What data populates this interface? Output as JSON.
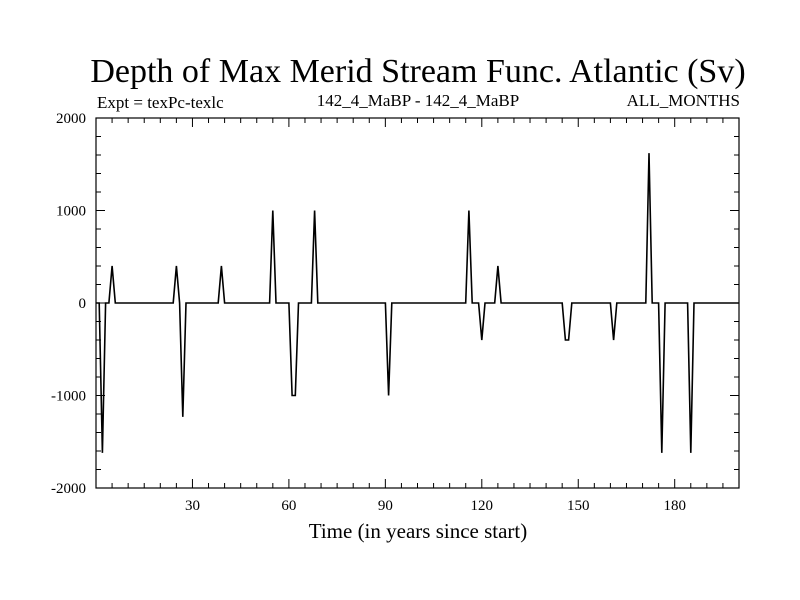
{
  "chart_data": {
    "type": "line",
    "title": "Depth of Max Merid Stream Func. Atlantic (Sv)",
    "subtitle_left": "Expt = texPc-texlc",
    "subtitle_center": "142_4_MaBP - 142_4_MaBP",
    "subtitle_right": "ALL_MONTHS",
    "xlabel": "Time (in years since start)",
    "ylabel": "",
    "xlim": [
      0,
      200
    ],
    "ylim": [
      -2000,
      2000
    ],
    "xticks": [
      30,
      60,
      90,
      120,
      150,
      180
    ],
    "yticks": [
      2000,
      1000,
      0,
      -1000,
      -2000
    ],
    "series": [
      {
        "name": "Depth of Max Merid Stream Func.",
        "x": [
          0,
          1,
          2,
          3,
          4,
          5,
          6,
          24,
          25,
          26,
          27,
          28,
          38,
          39,
          40,
          54,
          55,
          56,
          60,
          61,
          62,
          63,
          67,
          68,
          69,
          90,
          91,
          92,
          115,
          116,
          117,
          119,
          120,
          121,
          124,
          125,
          126,
          145,
          146,
          147,
          148,
          160,
          161,
          162,
          169,
          171,
          172,
          173,
          175,
          176,
          177,
          178,
          184,
          185,
          186,
          187,
          200
        ],
        "y": [
          0,
          0,
          -1620,
          0,
          0,
          400,
          0,
          0,
          400,
          0,
          -1230,
          0,
          0,
          400,
          0,
          0,
          1000,
          0,
          0,
          -1000,
          -1000,
          0,
          0,
          1000,
          0,
          0,
          -1000,
          0,
          0,
          1000,
          0,
          0,
          -400,
          0,
          0,
          400,
          0,
          0,
          -400,
          -400,
          0,
          0,
          -400,
          0,
          0,
          0,
          1620,
          0,
          0,
          -1620,
          0,
          0,
          0,
          -1620,
          0,
          0,
          0
        ]
      }
    ]
  }
}
